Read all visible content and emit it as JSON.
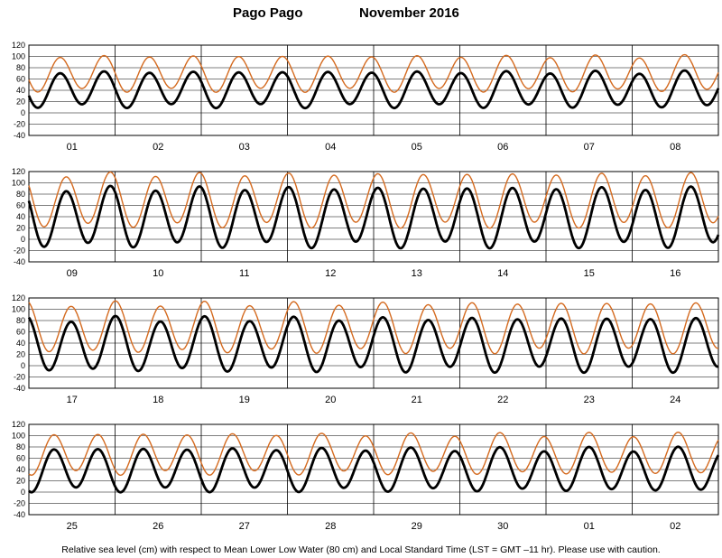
{
  "header": {
    "station": "Pago Pago",
    "month_year": "November   2016"
  },
  "footer": {
    "note": "Relative sea level (cm) with respect to Mean Lower Low Water (80 cm) and Local Standard Time (LST = GMT –11 hr). Please use with caution."
  },
  "colors": {
    "observed": "#d46a1f",
    "predicted": "#000000",
    "grid": "#000000"
  },
  "chart_data": [
    {
      "type": "line",
      "x_tick_labels": [
        "01",
        "02",
        "03",
        "04",
        "05",
        "06",
        "07",
        "08"
      ],
      "y_ticks": [
        120,
        100,
        80,
        60,
        40,
        20,
        0,
        -20,
        -40
      ],
      "ylim": [
        -40,
        120
      ],
      "series": [
        {
          "mean": 42,
          "amplitude": 30,
          "phase_deg": 200
        },
        {
          "mean": 70,
          "amplitude": 30,
          "phase_deg": 200
        }
      ]
    },
    {
      "type": "line",
      "x_tick_labels": [
        "09",
        "10",
        "11",
        "12",
        "13",
        "14",
        "15",
        "16"
      ],
      "y_ticks": [
        120,
        100,
        80,
        60,
        40,
        20,
        0,
        -20,
        -40
      ],
      "ylim": [
        -40,
        120
      ],
      "series": [
        {
          "mean": 40,
          "amplitude": 50,
          "phase_deg": 150
        },
        {
          "mean": 70,
          "amplitude": 45,
          "phase_deg": 150
        }
      ]
    },
    {
      "type": "line",
      "x_tick_labels": [
        "17",
        "18",
        "19",
        "20",
        "21",
        "22",
        "23",
        "24"
      ],
      "y_ticks": [
        120,
        100,
        80,
        60,
        40,
        20,
        0,
        -20,
        -40
      ],
      "ylim": [
        -40,
        120
      ],
      "series": [
        {
          "mean": 38,
          "amplitude": 45,
          "phase_deg": 110
        },
        {
          "mean": 68,
          "amplitude": 42,
          "phase_deg": 110
        }
      ]
    },
    {
      "type": "line",
      "x_tick_labels": [
        "25",
        "26",
        "27",
        "28",
        "29",
        "30",
        "01",
        "02"
      ],
      "y_ticks": [
        120,
        100,
        80,
        60,
        40,
        20,
        0,
        -20,
        -40
      ],
      "ylim": [
        -40,
        120
      ],
      "series": [
        {
          "mean": 40,
          "amplitude": 36,
          "phase_deg": 250
        },
        {
          "mean": 68,
          "amplitude": 34,
          "phase_deg": 250
        }
      ]
    }
  ]
}
